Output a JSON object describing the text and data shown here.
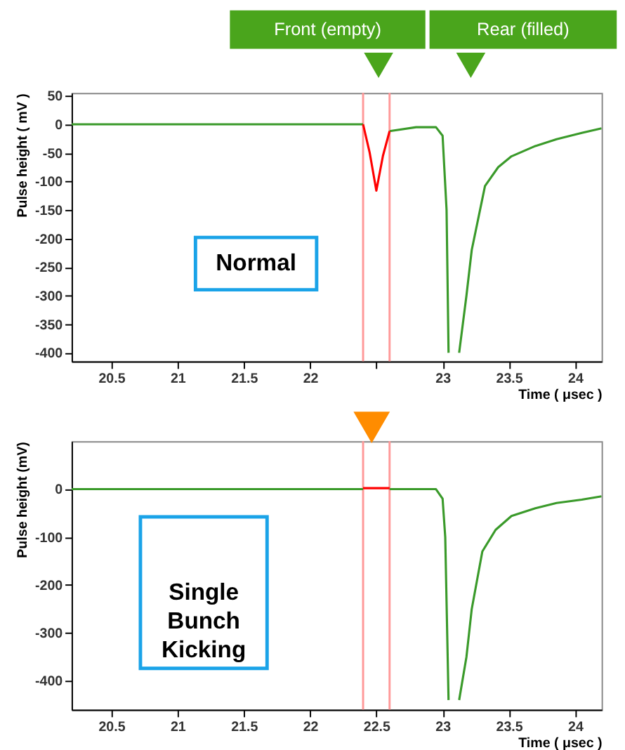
{
  "chart_data": [
    {
      "type": "line",
      "xlabel": "Time ( μsec )",
      "ylabel": "Pulse height ( mV )",
      "annotations": [
        "Front (empty)",
        "Rear (filled)",
        "Normal"
      ],
      "xlim": [
        20.2,
        24.2
      ],
      "xticks": [
        20.5,
        21,
        21.5,
        22,
        {
          "value": 22.5,
          "label": null
        },
        23,
        23.5,
        24
      ],
      "ylim": [
        -415,
        55
      ],
      "yticks": [
        -400,
        -350,
        -300,
        -250,
        -200,
        -150,
        -100,
        -50,
        0,
        50
      ],
      "series": [
        {
          "color": "#3a9a2a",
          "x": [
            20.2,
            20.6,
            21.0,
            21.4,
            21.8,
            22.2,
            22.4,
            22.5,
            22.6,
            22.8,
            22.95,
            23.0,
            23.03,
            23.045,
            23.09,
            23.125,
            23.18,
            23.22,
            23.32,
            23.42,
            23.52,
            23.7,
            23.86,
            24.05,
            24.2
          ],
          "values": [
            0,
            0,
            0,
            0,
            0,
            0,
            0,
            null,
            -12,
            -5,
            -5,
            -20,
            -150,
            -400,
            null,
            -400,
            -300,
            -220,
            -108,
            -75,
            -56,
            -38,
            -26,
            -15,
            -7
          ]
        },
        {
          "color": "#ff0000",
          "x": [
            22.4,
            22.45,
            22.5,
            22.55,
            22.6
          ],
          "values": [
            0,
            -50,
            -116,
            -55,
            -12
          ]
        }
      ],
      "ref_lines": [
        {
          "axis": "x",
          "value": 22.4,
          "color": "#ff9999"
        },
        {
          "axis": "x",
          "value": 22.6,
          "color": "#ff9999"
        }
      ]
    },
    {
      "type": "line",
      "xlabel": "Time ( μsec )",
      "ylabel": "Pulse height (mV)",
      "annotations": [
        "Single Bunch Kicking"
      ],
      "xlim": [
        20.2,
        24.2
      ],
      "xticks": [
        20.5,
        21,
        21.5,
        22,
        22.5,
        23,
        23.5,
        24
      ],
      "ylim": [
        -460,
        100
      ],
      "yticks": [
        -400,
        -300,
        -200,
        -100,
        0
      ],
      "series": [
        {
          "color": "#3a9a2a",
          "x": [
            20.2,
            20.6,
            21.0,
            21.4,
            21.8,
            22.2,
            22.4,
            22.5,
            22.6,
            22.8,
            22.95,
            23.0,
            23.02,
            23.045,
            23.09,
            23.125,
            23.18,
            23.22,
            23.3,
            23.4,
            23.52,
            23.7,
            23.86,
            24.05,
            24.2
          ],
          "values": [
            0,
            0,
            0,
            0,
            0,
            0,
            0,
            null,
            0,
            0,
            0,
            -20,
            -100,
            -440,
            null,
            -440,
            -350,
            -250,
            -130,
            -85,
            -56,
            -40,
            -29,
            -22,
            -15
          ]
        },
        {
          "color": "#ff0000",
          "x": [
            22.4,
            22.5,
            22.6
          ],
          "values": [
            2,
            2,
            2
          ]
        }
      ],
      "ref_lines": [
        {
          "axis": "x",
          "value": 22.4,
          "color": "#ff9999"
        },
        {
          "axis": "x",
          "value": 22.6,
          "color": "#ff9999"
        }
      ]
    }
  ]
}
